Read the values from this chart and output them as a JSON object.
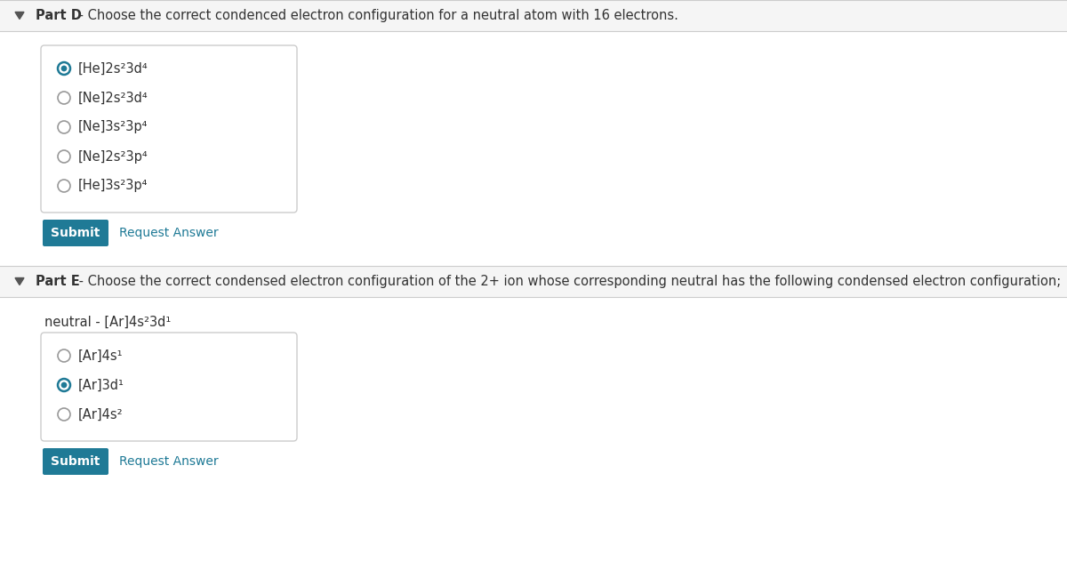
{
  "white": "#ffffff",
  "light_gray_bg": "#f5f5f5",
  "border_color": "#cccccc",
  "teal_color": "#1f7a96",
  "text_color": "#333333",
  "radio_sel_color": "#1f7a96",
  "radio_unsel_color": "#999999",
  "partD_header": "Part D",
  "partD_desc": " - Choose the correct condenced electron configuration for a neutral atom with 16 electrons.",
  "partD_options": [
    {
      "text": "[He]2s²3d⁴",
      "selected": true
    },
    {
      "text": "[Ne]2s²3d⁴",
      "selected": false
    },
    {
      "text": "[Ne]3s²3p⁴",
      "selected": false
    },
    {
      "text": "[Ne]2s²3p⁴",
      "selected": false
    },
    {
      "text": "[He]3s²3p⁴",
      "selected": false
    }
  ],
  "partE_header": "Part E",
  "partE_desc": " - Choose the correct condensed electron configuration of the 2+ ion whose corresponding neutral has the following condensed electron configuration;",
  "partE_neutral_label": "neutral - ",
  "partE_neutral_config": "[Ar]4s²3d¹",
  "partE_options": [
    {
      "text": "[Ar]4s¹",
      "selected": false
    },
    {
      "text": "[Ar]3d¹",
      "selected": true
    },
    {
      "text": "[Ar]4s²",
      "selected": false
    }
  ],
  "submit_label": "Submit",
  "request_label": "Request Answer",
  "figw": 12.0,
  "figh": 6.59,
  "dpi": 100
}
